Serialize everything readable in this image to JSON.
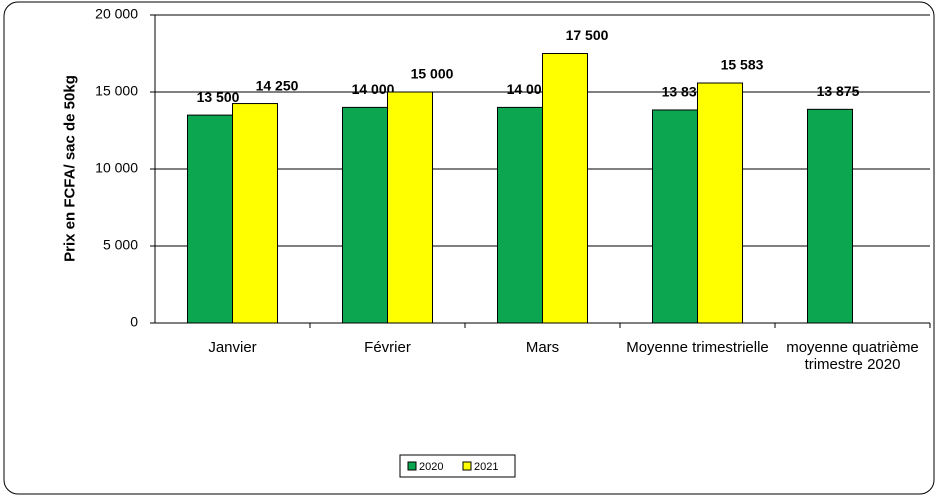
{
  "chart_data": {
    "type": "bar",
    "y_label": "Prix en FCFA/ sac de 50kg",
    "categories": [
      "Janvier",
      "Février",
      "Mars",
      "Moyenne trimestrielle",
      "moyenne quatrième trimestre 2020"
    ],
    "series": [
      {
        "name": "2020",
        "color": "#0ca550",
        "values": [
          13500,
          14000,
          14000,
          13833,
          13875
        ],
        "value_labels": [
          "13 500",
          "14 000",
          "14 000",
          "13 833",
          "13 875"
        ]
      },
      {
        "name": "2021",
        "color": "#ffff00",
        "values": [
          14250,
          15000,
          17500,
          15583,
          null
        ],
        "value_labels": [
          "14 250",
          "15 000",
          "17 500",
          "15 583",
          null
        ]
      }
    ],
    "ylim": [
      0,
      20000
    ],
    "yticks": [
      0,
      {
        "value": 5000,
        "label": "5 000"
      },
      {
        "value": 10000,
        "label": "10 000"
      },
      {
        "value": 15000,
        "label": "15 000"
      },
      {
        "value": 20000,
        "label": "20 000"
      }
    ],
    "grid": true,
    "legend": "bottom"
  }
}
